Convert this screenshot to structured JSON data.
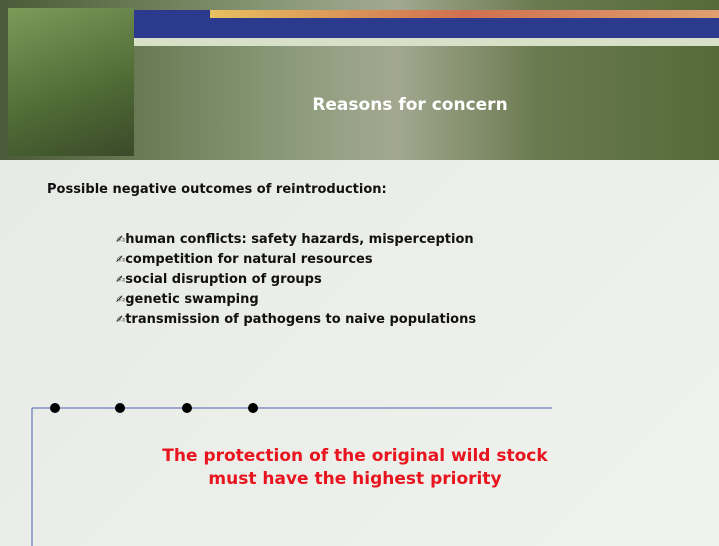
{
  "header": {
    "title": "Reasons for concern"
  },
  "intro": "Possible negative outcomes of reintroduction:",
  "bullets": [
    "human conflicts: safety hazards, misperception",
    "competition for natural resources",
    "social disruption of groups",
    "genetic swamping",
    "transmission of pathogens to naive populations"
  ],
  "callout": [
    "The protection of the original wild stock",
    "must have the highest priority"
  ]
}
